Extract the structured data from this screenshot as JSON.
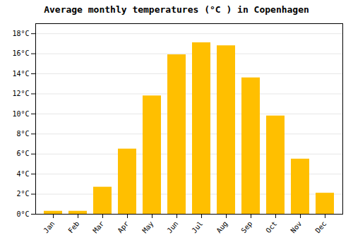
{
  "chart_data": {
    "type": "bar",
    "title": "Average monthly temperatures (°C ) in Copenhagen",
    "categories": [
      "Jan",
      "Feb",
      "Mar",
      "Apr",
      "May",
      "Jun",
      "Jul",
      "Aug",
      "Sep",
      "Oct",
      "Nov",
      "Dec"
    ],
    "values": [
      0.3,
      0.3,
      2.7,
      6.5,
      11.8,
      15.9,
      17.1,
      16.8,
      13.6,
      9.8,
      5.5,
      2.1
    ],
    "color": "#FFBF00",
    "ylim": [
      0,
      19
    ],
    "yticks": [
      {
        "value": 0,
        "label": "0°C"
      },
      {
        "value": 2,
        "label": "2°C"
      },
      {
        "value": 4,
        "label": "4°C"
      },
      {
        "value": 6,
        "label": "6°C"
      },
      {
        "value": 8,
        "label": "8°C"
      },
      {
        "value": 10,
        "label": "10°C"
      },
      {
        "value": 12,
        "label": "12°C"
      },
      {
        "value": 14,
        "label": "14°C"
      },
      {
        "value": 16,
        "label": "16°C"
      },
      {
        "value": 18,
        "label": "18°C"
      }
    ],
    "grid": true
  }
}
